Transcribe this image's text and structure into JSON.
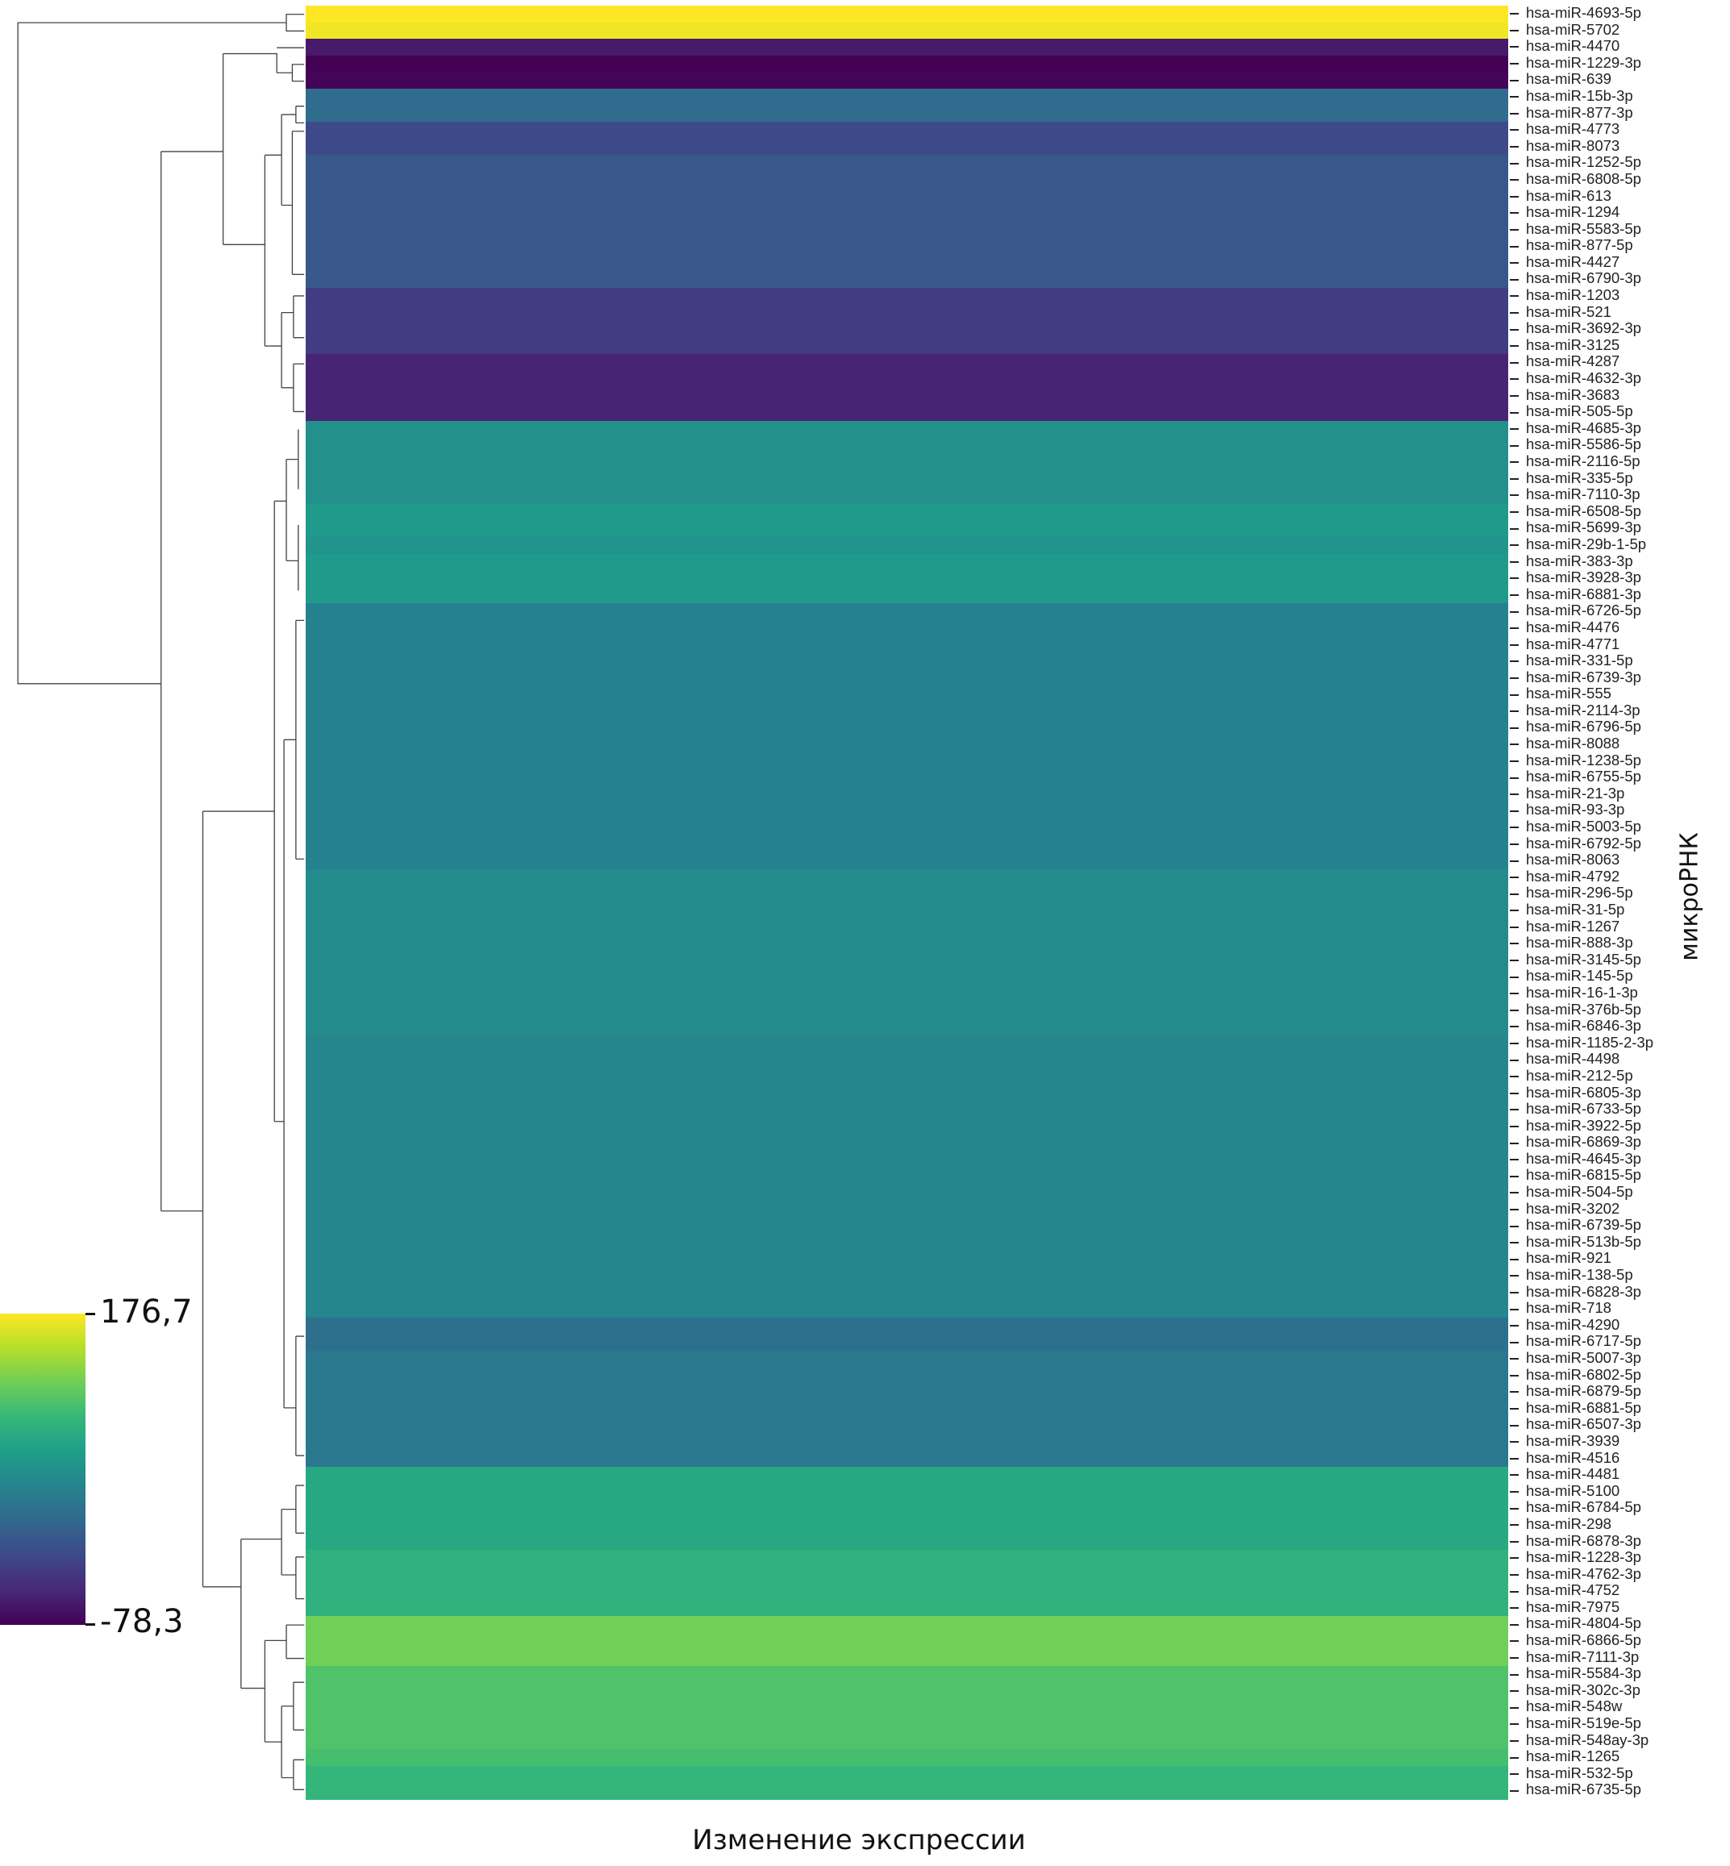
{
  "chart_data": {
    "type": "heatmap",
    "xlabel": "Изменение экспрессии",
    "ylabel": "микроРНК",
    "colorbar": {
      "max_label": "176,7",
      "min_label": "-78,3",
      "min": -78.3,
      "max": 176.7,
      "colormap": "viridis"
    },
    "rows": [
      "hsa-miR-4693-5p",
      "hsa-miR-5702",
      "hsa-miR-4470",
      "hsa-miR-1229-3p",
      "hsa-miR-639",
      "hsa-miR-15b-3p",
      "hsa-miR-877-3p",
      "hsa-miR-4773",
      "hsa-miR-8073",
      "hsa-miR-1252-5p",
      "hsa-miR-6808-5p",
      "hsa-miR-613",
      "hsa-miR-1294",
      "hsa-miR-5583-5p",
      "hsa-miR-877-5p",
      "hsa-miR-4427",
      "hsa-miR-6790-3p",
      "hsa-miR-1203",
      "hsa-miR-521",
      "hsa-miR-3692-3p",
      "hsa-miR-3125",
      "hsa-miR-4287",
      "hsa-miR-4632-3p",
      "hsa-miR-3683",
      "hsa-miR-505-5p",
      "hsa-miR-4685-3p",
      "hsa-miR-5586-5p",
      "hsa-miR-2116-5p",
      "hsa-miR-335-5p",
      "hsa-miR-7110-3p",
      "hsa-miR-6508-5p",
      "hsa-miR-5699-3p",
      "hsa-miR-29b-1-5p",
      "hsa-miR-383-3p",
      "hsa-miR-3928-3p",
      "hsa-miR-6881-3p",
      "hsa-miR-6726-5p",
      "hsa-miR-4476",
      "hsa-miR-4771",
      "hsa-miR-331-5p",
      "hsa-miR-6739-3p",
      "hsa-miR-555",
      "hsa-miR-2114-3p",
      "hsa-miR-6796-5p",
      "hsa-miR-8088",
      "hsa-miR-1238-5p",
      "hsa-miR-6755-5p",
      "hsa-miR-21-3p",
      "hsa-miR-93-3p",
      "hsa-miR-5003-5p",
      "hsa-miR-6792-5p",
      "hsa-miR-8063",
      "hsa-miR-4792",
      "hsa-miR-296-5p",
      "hsa-miR-31-5p",
      "hsa-miR-1267",
      "hsa-miR-888-3p",
      "hsa-miR-3145-5p",
      "hsa-miR-145-5p",
      "hsa-miR-16-1-3p",
      "hsa-miR-376b-5p",
      "hsa-miR-6846-3p",
      "hsa-miR-1185-2-3p",
      "hsa-miR-4498",
      "hsa-miR-212-5p",
      "hsa-miR-6805-3p",
      "hsa-miR-6733-5p",
      "hsa-miR-3922-5p",
      "hsa-miR-6869-3p",
      "hsa-miR-4645-3p",
      "hsa-miR-6815-5p",
      "hsa-miR-504-5p",
      "hsa-miR-3202",
      "hsa-miR-6739-5p",
      "hsa-miR-513b-5p",
      "hsa-miR-921",
      "hsa-miR-138-5p",
      "hsa-miR-6828-3p",
      "hsa-miR-718",
      "hsa-miR-4290",
      "hsa-miR-6717-5p",
      "hsa-miR-5007-3p",
      "hsa-miR-6802-5p",
      "hsa-miR-6879-5p",
      "hsa-miR-6881-5p",
      "hsa-miR-6507-3p",
      "hsa-miR-3939",
      "hsa-miR-4516",
      "hsa-miR-4481",
      "hsa-miR-5100",
      "hsa-miR-6784-5p",
      "hsa-miR-298",
      "hsa-miR-6878-3p",
      "hsa-miR-1228-3p",
      "hsa-miR-4762-3p",
      "hsa-miR-4752",
      "hsa-miR-7975",
      "hsa-miR-4804-5p",
      "hsa-miR-6866-5p",
      "hsa-miR-7111-3p",
      "hsa-miR-5584-3p",
      "hsa-miR-302c-3p",
      "hsa-miR-548w",
      "hsa-miR-519e-5p",
      "hsa-miR-548ay-3p",
      "hsa-miR-1265",
      "hsa-miR-532-5p",
      "hsa-miR-6735-5p"
    ],
    "values": [
      176.7,
      172,
      -60,
      -78.3,
      -76,
      11,
      11,
      -22,
      -22,
      -9,
      -9,
      -9,
      -9,
      -9,
      -9,
      -9,
      -9,
      -32,
      -32,
      -32,
      -32,
      -53,
      -53,
      -53,
      -53,
      49,
      49,
      49,
      49,
      49,
      59,
      59,
      54,
      59,
      59,
      59,
      34,
      34,
      34,
      34,
      34,
      34,
      34,
      34,
      34,
      34,
      34,
      34,
      34,
      34,
      34,
      34,
      44,
      44,
      44,
      44,
      44,
      44,
      44,
      44,
      44,
      44,
      39,
      39,
      39,
      39,
      39,
      39,
      39,
      39,
      39,
      39,
      39,
      39,
      39,
      39,
      39,
      39,
      39,
      14,
      14,
      24,
      24,
      24,
      24,
      24,
      24,
      24,
      75,
      75,
      75,
      75,
      75,
      85,
      85,
      85,
      85,
      121,
      121,
      121,
      105,
      105,
      105,
      105,
      105,
      100,
      90,
      90
    ]
  }
}
